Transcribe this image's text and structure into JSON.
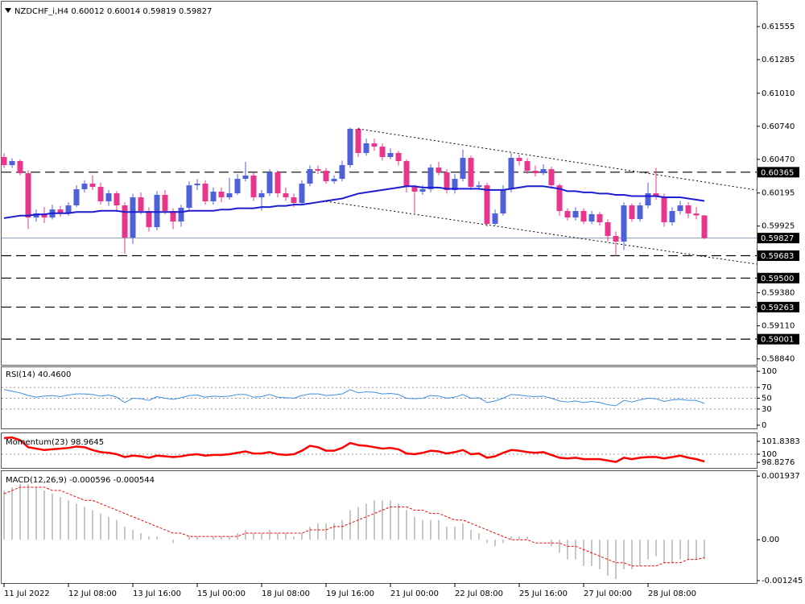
{
  "chart_data": [
    {
      "type": "candlestick",
      "title": "NZDCHF_i,H4",
      "categories": [
        "11 Jul 2022",
        null,
        null,
        null,
        null,
        null,
        null,
        null,
        "12 Jul 08:00",
        null,
        null,
        null,
        null,
        null,
        null,
        null,
        "13 Jul 16:00",
        null,
        null,
        null,
        null,
        null,
        null,
        null,
        "15 Jul 00:00",
        null,
        null,
        null,
        null,
        null,
        null,
        null,
        "18 Jul 08:00",
        null,
        null,
        null,
        null,
        null,
        null,
        null,
        "19 Jul 16:00",
        null,
        null,
        null,
        null,
        null,
        null,
        null,
        "21 Jul 00:00",
        null,
        null,
        null,
        null,
        null,
        null,
        null,
        "22 Jul 08:00",
        null,
        null,
        null,
        null,
        null,
        null,
        null,
        "25 Jul 16:00",
        null,
        null,
        null,
        null,
        null,
        null,
        null,
        "27 Jul 00:00",
        null,
        null,
        null,
        null,
        null,
        null,
        null,
        "28 Jul 08:00",
        null,
        null,
        null,
        null,
        null,
        null,
        null
      ],
      "open": [
        0.60489,
        0.60423,
        0.60456,
        0.60357,
        0.59995,
        0.60028,
        0.59995,
        0.60061,
        0.60028,
        0.60094,
        0.60226,
        0.60272,
        0.60245,
        0.60127,
        0.60193,
        0.60094,
        0.59831,
        0.6016,
        0.60048,
        0.59916,
        0.6018,
        0.60048,
        0.59962,
        0.60074,
        0.60258,
        0.60272,
        0.60127,
        0.60206,
        0.6016,
        0.60193,
        0.60311,
        0.60338,
        0.6016,
        0.60193,
        0.60364,
        0.60193,
        0.6016,
        0.60114,
        0.60272,
        0.6039,
        0.60377,
        0.60291,
        0.60311,
        0.60423,
        0.60719,
        0.60522,
        0.60601,
        0.60574,
        0.60489,
        0.60522,
        0.60456,
        0.60245,
        0.60206,
        0.60226,
        0.60403,
        0.60364,
        0.60219,
        0.60311,
        0.60482,
        0.60245,
        0.60258,
        0.59943,
        0.60028,
        0.60226,
        0.60482,
        0.60456,
        0.60377,
        0.60357,
        0.6039,
        0.60258,
        0.60048,
        0.59995,
        0.60048,
        0.59962,
        0.60022,
        0.59956,
        0.59844,
        0.59798,
        0.60094,
        0.59982,
        0.60094,
        0.60193,
        0.60167,
        0.59956,
        0.60048,
        0.60094,
        0.60028,
        0.60012
      ],
      "high": [
        0.6052,
        0.6048,
        0.6047,
        0.6038,
        0.6006,
        0.6008,
        0.601,
        0.6009,
        0.6012,
        0.6026,
        0.603,
        0.6034,
        0.6028,
        0.6022,
        0.6021,
        0.6012,
        0.6019,
        0.602,
        0.6008,
        0.6021,
        0.6022,
        0.6007,
        0.601,
        0.6029,
        0.6031,
        0.603,
        0.6024,
        0.6024,
        0.6032,
        0.6035,
        0.6045,
        0.6036,
        0.6022,
        0.6039,
        0.6038,
        0.6024,
        0.6019,
        0.603,
        0.6042,
        0.6042,
        0.604,
        0.6034,
        0.6046,
        0.6073,
        0.6073,
        0.6064,
        0.6064,
        0.606,
        0.6056,
        0.6054,
        0.6047,
        0.6026,
        0.6026,
        0.6043,
        0.6045,
        0.6039,
        0.6035,
        0.6055,
        0.605,
        0.6029,
        0.6028,
        0.6006,
        0.6026,
        0.6052,
        0.6051,
        0.6048,
        0.6042,
        0.6043,
        0.6041,
        0.6027,
        0.6007,
        0.6008,
        0.6007,
        0.6005,
        0.6004,
        0.5998,
        0.5988,
        0.6012,
        0.6011,
        0.6012,
        0.6028,
        0.604,
        0.6019,
        0.6008,
        0.6013,
        0.6012,
        0.6008,
        0.60014
      ],
      "low": [
        0.604,
        0.604,
        0.6034,
        0.599,
        0.5996,
        0.5995,
        0.5998,
        0.6,
        0.6001,
        0.6008,
        0.602,
        0.6022,
        0.601,
        0.6009,
        0.6004,
        0.597,
        0.5978,
        0.6002,
        0.5988,
        0.5989,
        0.6002,
        0.599,
        0.5992,
        0.6005,
        0.6022,
        0.601,
        0.601,
        0.6012,
        0.6014,
        0.6018,
        0.6029,
        0.6013,
        0.6005,
        0.6017,
        0.6016,
        0.6013,
        0.6008,
        0.601,
        0.6025,
        0.6035,
        0.6027,
        0.6027,
        0.6029,
        0.604,
        0.6049,
        0.605,
        0.6054,
        0.6046,
        0.6047,
        0.6042,
        0.602,
        0.6003,
        0.6018,
        0.602,
        0.6034,
        0.6019,
        0.6019,
        0.6029,
        0.6022,
        0.6022,
        0.5992,
        0.5993,
        0.6001,
        0.602,
        0.6042,
        0.6035,
        0.6033,
        0.6034,
        0.6023,
        0.6001,
        0.5997,
        0.5997,
        0.5994,
        0.5994,
        0.5993,
        0.598,
        0.5968,
        0.5973,
        0.5996,
        0.5996,
        0.6007,
        0.6014,
        0.5992,
        0.5993,
        0.6002,
        0.5999,
        0.5998,
        0.59819
      ],
      "close": [
        0.60423,
        0.60456,
        0.60357,
        0.59995,
        0.60028,
        0.59995,
        0.60061,
        0.60028,
        0.60094,
        0.60226,
        0.60272,
        0.60245,
        0.60127,
        0.60193,
        0.60094,
        0.59831,
        0.6016,
        0.60048,
        0.59916,
        0.6018,
        0.60048,
        0.59962,
        0.60074,
        0.60258,
        0.60272,
        0.60127,
        0.60206,
        0.6016,
        0.60193,
        0.60311,
        0.60338,
        0.6016,
        0.60193,
        0.60364,
        0.60193,
        0.6016,
        0.60114,
        0.60272,
        0.6039,
        0.60377,
        0.60291,
        0.60311,
        0.60423,
        0.60719,
        0.60522,
        0.60601,
        0.60574,
        0.60489,
        0.60522,
        0.60456,
        0.60245,
        0.60206,
        0.60226,
        0.60403,
        0.60364,
        0.60219,
        0.60311,
        0.60482,
        0.60245,
        0.60258,
        0.59943,
        0.60028,
        0.60226,
        0.60482,
        0.60456,
        0.60377,
        0.60357,
        0.6039,
        0.60258,
        0.60048,
        0.59995,
        0.60048,
        0.59962,
        0.60022,
        0.59956,
        0.59844,
        0.59798,
        0.60094,
        0.59982,
        0.60094,
        0.60193,
        0.60167,
        0.59956,
        0.60048,
        0.60094,
        0.60028,
        0.60012,
        0.59827
      ],
      "up_color": "#4f61d9",
      "down_color": "#e8358d",
      "ma": {
        "color": "#1c1cd0",
        "values": [
          0.5999,
          0.6,
          0.6001,
          0.6001,
          0.6002,
          0.6002,
          0.6003,
          0.6003,
          0.6003,
          0.6004,
          0.6004,
          0.6004,
          0.6005,
          0.6005,
          0.6005,
          0.6004,
          0.6004,
          0.6004,
          0.6004,
          0.6004,
          0.6004,
          0.6004,
          0.6004,
          0.6005,
          0.6005,
          0.6005,
          0.6005,
          0.6006,
          0.6006,
          0.6007,
          0.6007,
          0.6007,
          0.6008,
          0.6008,
          0.6009,
          0.6009,
          0.601,
          0.601,
          0.6011,
          0.6012,
          0.6013,
          0.6014,
          0.6015,
          0.6017,
          0.6019,
          0.602,
          0.6021,
          0.6022,
          0.6023,
          0.6024,
          0.6025,
          0.6025,
          0.6024,
          0.6024,
          0.6024,
          0.6023,
          0.6023,
          0.6023,
          0.6023,
          0.6023,
          0.6022,
          0.6022,
          0.6022,
          0.6023,
          0.6024,
          0.6025,
          0.6025,
          0.6025,
          0.6024,
          0.6023,
          0.6021,
          0.6021,
          0.602,
          0.602,
          0.6019,
          0.6019,
          0.6018,
          0.6018,
          0.6017,
          0.6017,
          0.6017,
          0.6017,
          0.6016,
          0.6016,
          0.6016,
          0.6015,
          0.6014,
          0.6013
        ]
      },
      "levels": [
        0.60365,
        0.59683,
        {
          "value": 0.595,
          "label": "0.59500"
        },
        0.59263,
        0.59001
      ],
      "ylim": [
        0.58798,
        0.61739
      ],
      "yticks": [
        0.61555,
        0.61285,
        {
          "value": 0.6101,
          "label": "0.61010"
        },
        {
          "value": 0.6074,
          "label": "0.60740"
        },
        {
          "value": 0.6047,
          "label": "0.60470"
        },
        0.60195,
        0.59925,
        {
          "value": 0.5938,
          "label": "0.59380"
        },
        {
          "value": 0.5911,
          "label": "0.59110"
        },
        {
          "value": 0.5884,
          "label": "0.58840"
        }
      ]
    },
    {
      "type": "line",
      "title": "RSI(14)",
      "value_label": "40.4600",
      "color": "#3d8fe0",
      "values": [
        66,
        63,
        60,
        55,
        52,
        54,
        55,
        53,
        56,
        58,
        58,
        57,
        54,
        56,
        52,
        42,
        50,
        49,
        46,
        53,
        50,
        48,
        51,
        55,
        56,
        52,
        54,
        53,
        54,
        57,
        57,
        52,
        53,
        57,
        52,
        51,
        50,
        55,
        58,
        58,
        55,
        56,
        58,
        66,
        60,
        62,
        61,
        58,
        59,
        57,
        50,
        49,
        50,
        55,
        54,
        50,
        52,
        57,
        50,
        51,
        42,
        45,
        50,
        57,
        56,
        54,
        53,
        54,
        50,
        45,
        43,
        45,
        42,
        44,
        42,
        38,
        36,
        46,
        43,
        47,
        50,
        49,
        44,
        47,
        48,
        46,
        46,
        40.46
      ],
      "levels": [
        70,
        50,
        30
      ],
      "ylim": [
        -6,
        109
      ],
      "yticks": [
        100,
        70,
        50,
        30,
        0
      ]
    },
    {
      "type": "line",
      "title": "Momentum(23)",
      "color": "#ff0000",
      "values": [
        102.3,
        102.4,
        102.0,
        101.0,
        100.8,
        100.6,
        100.7,
        100.8,
        100.9,
        101.1,
        101.0,
        100.6,
        100.3,
        100.2,
        100.0,
        99.6,
        99.8,
        99.7,
        99.5,
        99.8,
        99.7,
        99.6,
        99.7,
        99.9,
        100.0,
        99.8,
        99.9,
        99.9,
        100.0,
        100.2,
        100.4,
        100.1,
        100.1,
        100.3,
        100.0,
        99.9,
        100.0,
        100.5,
        101.2,
        101.0,
        100.5,
        100.5,
        100.9,
        101.6,
        101.3,
        101.2,
        101.0,
        100.8,
        100.9,
        100.7,
        100.1,
        100.0,
        100.2,
        100.5,
        100.4,
        100.1,
        100.3,
        100.6,
        100.0,
        100.1,
        99.5,
        99.7,
        100.2,
        100.6,
        100.5,
        100.3,
        100.2,
        100.3,
        99.9,
        99.5,
        99.4,
        99.5,
        99.3,
        99.3,
        99.3,
        99.1,
        98.9,
        99.5,
        99.3,
        99.5,
        99.6,
        99.6,
        99.4,
        99.6,
        99.8,
        99.5,
        99.3,
        98.9645
      ],
      "levels": [
        100
      ],
      "ylim": [
        98.05,
        102.76
      ],
      "yticks": [
        101.8383,
        100,
        98.8276
      ]
    },
    {
      "type": "bar",
      "title": "MACD(12,26,9)",
      "color": "#b4b4b4",
      "values": [
        0.0015,
        0.0016,
        0.0017,
        0.0017,
        0.0016,
        0.0015,
        0.0014,
        0.0013,
        0.0012,
        0.0011,
        0.001,
        0.0009,
        0.0008,
        0.0007,
        0.0006,
        0.0004,
        0.0003,
        0.0002,
        0.0001,
        0.0001,
        0,
        -0.0001,
        0,
        0.0001,
        0.0001,
        0,
        0.0001,
        0.0001,
        0.0001,
        0.0002,
        0.0003,
        0.0002,
        0.0002,
        0.0003,
        0.0002,
        0.0002,
        0.0001,
        0.0002,
        0.0004,
        0.0005,
        0.0005,
        0.0005,
        0.0006,
        0.0009,
        0.001,
        0.0011,
        0.0012,
        0.0012,
        0.0012,
        0.0011,
        0.0009,
        0.0007,
        0.0006,
        0.0006,
        0.0006,
        0.0004,
        0.0004,
        0.0005,
        0.0003,
        0.0002,
        -0.0001,
        -0.0002,
        -0.0001,
        0.0001,
        0.0001,
        0.0001,
        0,
        0,
        -0.0002,
        -0.0004,
        -0.0006,
        -0.0006,
        -0.0008,
        -0.0008,
        -0.0009,
        -0.0011,
        -0.0012,
        -0.0009,
        -0.0009,
        -0.0008,
        -0.0006,
        -0.0005,
        -0.0007,
        -0.0007,
        -0.0006,
        -0.0006,
        -0.0006,
        -0.000596
      ],
      "signal": {
        "color": "#ff0000",
        "values": [
          0.0014,
          0.0015,
          0.0016,
          0.0016,
          0.0016,
          0.0016,
          0.0015,
          0.0015,
          0.0014,
          0.0013,
          0.0012,
          0.0012,
          0.0011,
          0.001,
          0.0009,
          0.0008,
          0.0007,
          0.0006,
          0.0005,
          0.0004,
          0.0003,
          0.0002,
          0.0002,
          0.0001,
          0.0001,
          0.0001,
          0.0001,
          0.0001,
          0.0001,
          0.0001,
          0.0002,
          0.0002,
          0.0002,
          0.0002,
          0.0002,
          0.0002,
          0.0002,
          0.0002,
          0.0003,
          0.0003,
          0.0003,
          0.0004,
          0.0004,
          0.0005,
          0.0006,
          0.0007,
          0.0008,
          0.0009,
          0.001,
          0.001,
          0.001,
          0.0009,
          0.0009,
          0.0008,
          0.0008,
          0.0007,
          0.0006,
          0.0006,
          0.0005,
          0.0004,
          0.0003,
          0.0002,
          0.0001,
          0,
          0,
          0,
          -0.0001,
          -0.0001,
          -0.0001,
          -0.0001,
          -0.0002,
          -0.0002,
          -0.0003,
          -0.0004,
          -0.0005,
          -0.0006,
          -0.0007,
          -0.0007,
          -0.0008,
          -0.0008,
          -0.0008,
          -0.0008,
          -0.0007,
          -0.0007,
          -0.0007,
          -0.0006,
          -0.0006,
          -0.000544
        ]
      },
      "ylim": [
        -0.00132,
        0.00209
      ],
      "yticks": [
        0.001937,
        {
          "value": 0,
          "label": "0.00"
        },
        -0.001245
      ]
    }
  ]
}
